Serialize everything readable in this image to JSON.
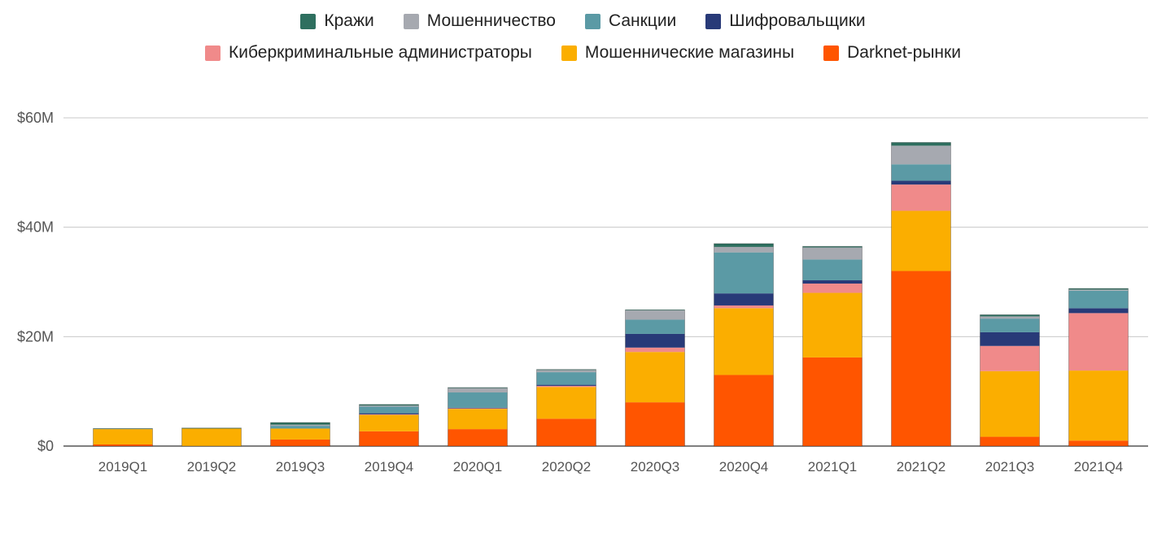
{
  "chart_data": {
    "type": "bar",
    "stacked": true,
    "title": "",
    "xlabel": "",
    "ylabel": "",
    "categories": [
      "2019Q1",
      "2019Q2",
      "2019Q3",
      "2019Q4",
      "2020Q1",
      "2020Q2",
      "2020Q3",
      "2020Q4",
      "2021Q1",
      "2021Q2",
      "2021Q3",
      "2021Q4"
    ],
    "ylim": [
      0,
      60
    ],
    "y_ticks": [
      0,
      20,
      40,
      60
    ],
    "y_tick_labels": [
      "$0",
      "$20M",
      "$40M",
      "$60M"
    ],
    "grid": true,
    "legend_position": "top",
    "series": [
      {
        "name": "Darknet-рынки",
        "color": "#ff5500",
        "values": [
          0.3,
          0.0,
          1.2,
          2.7,
          3.1,
          5.0,
          8.0,
          13.0,
          16.2,
          32.0,
          1.7,
          1.0
        ]
      },
      {
        "name": "Мошеннические магазины",
        "color": "#fbae00",
        "values": [
          2.8,
          3.2,
          2.0,
          3.0,
          3.7,
          5.8,
          9.2,
          12.2,
          11.8,
          11.0,
          12.0,
          12.8
        ]
      },
      {
        "name": "Киберкриминальные администраторы",
        "color": "#f08a8a",
        "values": [
          0,
          0,
          0,
          0.1,
          0.1,
          0.2,
          0.8,
          0.5,
          1.7,
          4.8,
          4.6,
          10.5
        ]
      },
      {
        "name": "Шифровальщики",
        "color": "#283a78",
        "values": [
          0,
          0,
          0,
          0.2,
          0.1,
          0.2,
          2.5,
          2.2,
          0.6,
          0.7,
          2.5,
          0.9
        ]
      },
      {
        "name": "Санкции",
        "color": "#5b9aa5",
        "values": [
          0,
          0,
          0.5,
          1.2,
          2.8,
          2.3,
          2.6,
          7.5,
          3.8,
          3.0,
          2.5,
          3.2
        ]
      },
      {
        "name": "Мошенничество",
        "color": "#a6a9b0",
        "values": [
          0,
          0,
          0.2,
          0.2,
          0.8,
          0.4,
          1.7,
          1.0,
          2.2,
          3.4,
          0.4,
          0.2
        ]
      },
      {
        "name": "Кражи",
        "color": "#2e6f5f",
        "values": [
          0.1,
          0.1,
          0.4,
          0.2,
          0.1,
          0.1,
          0.1,
          0.6,
          0.2,
          0.6,
          0.3,
          0.2
        ]
      }
    ],
    "legend_rows": [
      [
        "Кражи",
        "Мошенничество",
        "Санкции",
        "Шифровальщики"
      ],
      [
        "Киберкриминальные администраторы",
        "Мошеннические магазины",
        "Darknet-рынки"
      ]
    ]
  }
}
